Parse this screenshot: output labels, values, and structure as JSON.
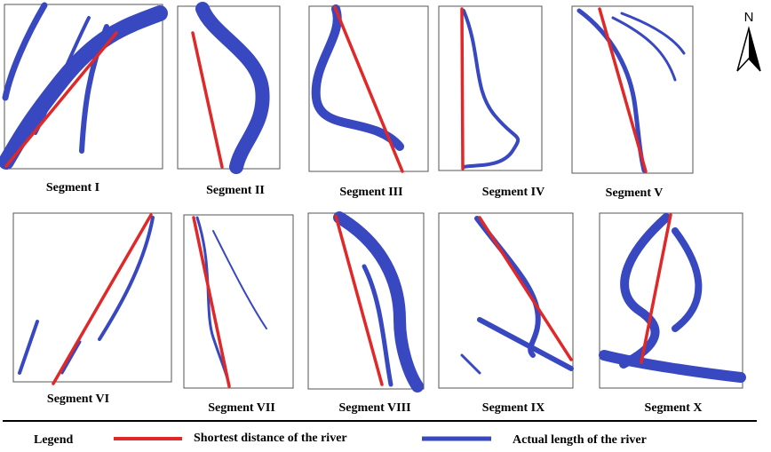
{
  "north": "N",
  "segments": [
    {
      "label": "Segment I"
    },
    {
      "label": "Segment II"
    },
    {
      "label": "Segment III"
    },
    {
      "label": "Segment IV"
    },
    {
      "label": "Segment V"
    },
    {
      "label": "Segment VI"
    },
    {
      "label": "Segment VII"
    },
    {
      "label": "Segment VIII"
    },
    {
      "label": "Segment IX"
    },
    {
      "label": "Segment X"
    }
  ],
  "legend": {
    "title": "Legend",
    "items": [
      {
        "label": "Shortest distance of the river"
      },
      {
        "label": "Actual length of the river"
      }
    ]
  }
}
